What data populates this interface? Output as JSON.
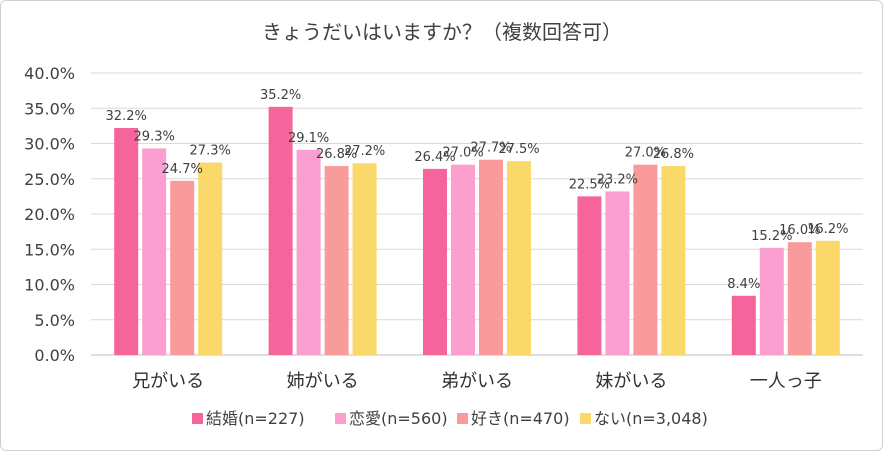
{
  "chart_data": {
    "type": "bar",
    "title": "きょうだいはいますか？（複数回答可）",
    "categories": [
      "兄がいる",
      "姉がいる",
      "弟がいる",
      "妹がいる",
      "一人っ子"
    ],
    "ylim": [
      0,
      40
    ],
    "yticks": [
      "0.0%",
      "5.0%",
      "10.0%",
      "15.0%",
      "20.0%",
      "25.0%",
      "30.0%",
      "35.0%",
      "40.0%"
    ],
    "series": [
      {
        "name": "結婚(n=227)",
        "color": "#f5649a",
        "values": [
          32.2,
          35.2,
          26.4,
          22.5,
          8.4
        ],
        "labels": [
          "32.2%",
          "35.2%",
          "26.4%",
          "22.5%",
          "8.4%"
        ]
      },
      {
        "name": "恋愛(n=560)",
        "color": "#fa9fd0",
        "values": [
          29.3,
          29.1,
          27.0,
          23.2,
          15.2
        ],
        "labels": [
          "29.3%",
          "29.1%",
          "27.0%",
          "23.2%",
          "15.2%"
        ]
      },
      {
        "name": "好き(n=470)",
        "color": "#fa9b9b",
        "values": [
          24.7,
          26.8,
          27.7,
          27.0,
          16.0
        ],
        "labels": [
          "24.7%",
          "26.8%",
          "27.7%",
          "27.0%",
          "16.0%"
        ]
      },
      {
        "name": "ない(n=3,048)",
        "color": "#fbd86a",
        "values": [
          27.3,
          27.2,
          27.5,
          26.8,
          16.2
        ],
        "labels": [
          "27.3%",
          "27.2%",
          "27.5%",
          "26.8%",
          "16.2%"
        ]
      }
    ],
    "legend_position": "bottom",
    "grid": true
  }
}
